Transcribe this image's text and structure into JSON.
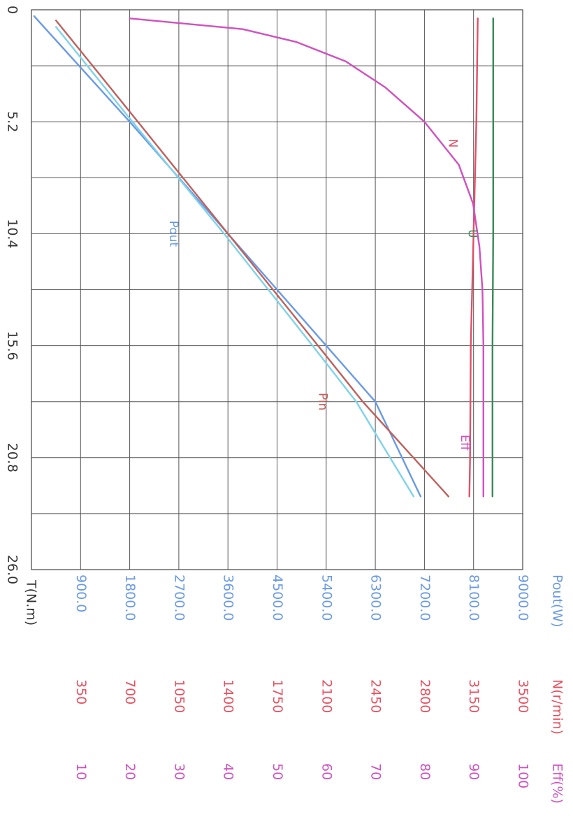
{
  "chart_data": {
    "type": "line",
    "x_axis": {
      "label": "T(N.m)",
      "ticks": [
        "0",
        "5.2",
        "10.4",
        "15.6",
        "20.8",
        "26.0"
      ],
      "range": [
        0,
        26
      ]
    },
    "y_axes": [
      {
        "id": "pout",
        "label": "Pout(W)",
        "color": "#6a9ae6",
        "ticks": [
          "900.0",
          "1800.0",
          "2700.0",
          "3600.0",
          "4500.0",
          "5400.0",
          "6300.0",
          "7200.0",
          "8100.0",
          "9000.0"
        ],
        "range": [
          0,
          9000
        ]
      },
      {
        "id": "speed",
        "label": "N(r/min)",
        "color": "#e85060",
        "ticks": [
          "350",
          "700",
          "1050",
          "1400",
          "1750",
          "2100",
          "2450",
          "2800",
          "3150",
          "3500"
        ],
        "range": [
          0,
          3500
        ]
      },
      {
        "id": "eff",
        "label": "Eff(%)",
        "color": "#d050c0",
        "ticks": [
          "10",
          "20",
          "30",
          "40",
          "50",
          "60",
          "70",
          "80",
          "90",
          "100"
        ],
        "range": [
          0,
          100
        ]
      }
    ],
    "grid": true,
    "series": [
      {
        "name": "Pout",
        "axis": "pout",
        "color": "#6a9ae6",
        "label_at": [
          10.4,
          2600
        ],
        "points": [
          [
            0.3,
            50
          ],
          [
            5.2,
            1800
          ],
          [
            10.4,
            3600
          ],
          [
            15.6,
            5400
          ],
          [
            18.2,
            6300
          ],
          [
            22.6,
            7130
          ]
        ]
      },
      {
        "name": "",
        "axis": "pout",
        "color": "#7ed3ea",
        "points": [
          [
            0.8,
            450
          ],
          [
            5.2,
            1850
          ],
          [
            10.4,
            3530
          ],
          [
            15.6,
            5150
          ],
          [
            18.2,
            5950
          ],
          [
            22.6,
            7000
          ]
        ]
      },
      {
        "name": "Pin",
        "axis": "pout",
        "color": "#c0605c",
        "label_at": [
          18.2,
          5330
        ],
        "points": [
          [
            0.5,
            450
          ],
          [
            5.2,
            1950
          ],
          [
            10.4,
            3600
          ],
          [
            15.6,
            5250
          ],
          [
            18.2,
            6070
          ],
          [
            22.6,
            7640
          ]
        ]
      },
      {
        "name": "N",
        "axis": "speed",
        "color": "#e05068",
        "label_at": [
          6.2,
          3000
        ],
        "points": [
          [
            0.4,
            3180
          ],
          [
            5.2,
            3170
          ],
          [
            10.4,
            3150
          ],
          [
            15.6,
            3130
          ],
          [
            20.8,
            3125
          ],
          [
            22.6,
            3120
          ]
        ]
      },
      {
        "name": "U",
        "axis": "speed",
        "color": "#3a8a5a",
        "label_at": [
          10.4,
          3140
        ],
        "points": [
          [
            0.4,
            3290
          ],
          [
            5.2,
            3290
          ],
          [
            10.4,
            3290
          ],
          [
            15.6,
            3285
          ],
          [
            20.8,
            3285
          ],
          [
            22.6,
            3285
          ]
        ]
      },
      {
        "name": "Eff",
        "axis": "eff",
        "color": "#d050c0",
        "label_at": [
          20.1,
          88.2
        ],
        "points": [
          [
            0.4,
            20
          ],
          [
            0.9,
            43
          ],
          [
            1.5,
            54
          ],
          [
            2.4,
            64
          ],
          [
            3.6,
            72
          ],
          [
            5.2,
            80
          ],
          [
            7.2,
            87
          ],
          [
            9.0,
            89.9
          ],
          [
            11.0,
            91.2
          ],
          [
            13.0,
            91.8
          ],
          [
            15.6,
            92
          ],
          [
            20.8,
            92
          ],
          [
            22.6,
            92
          ]
        ]
      }
    ]
  }
}
